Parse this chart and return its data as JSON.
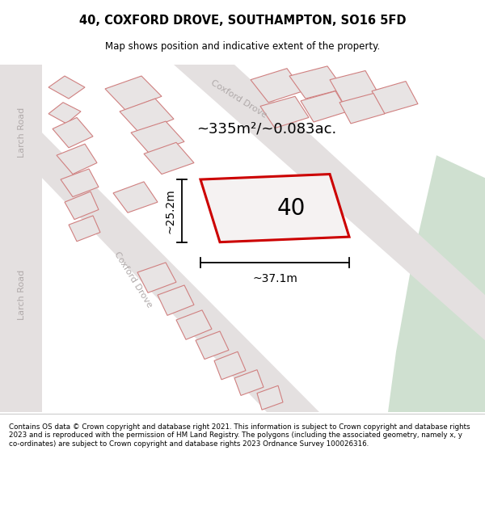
{
  "title": "40, COXFORD DROVE, SOUTHAMPTON, SO16 5FD",
  "subtitle": "Map shows position and indicative extent of the property.",
  "footer": "Contains OS data © Crown copyright and database right 2021. This information is subject to Crown copyright and database rights 2023 and is reproduced with the permission of HM Land Registry. The polygons (including the associated geometry, namely x, y co-ordinates) are subject to Crown copyright and database rights 2023 Ordnance Survey 100026316.",
  "highlight_color": "#cc0000",
  "green_area_color": "#cfe0d0",
  "area_text": "~335m²/~0.083ac.",
  "dim_width": "~37.1m",
  "dim_height": "~25.2m",
  "plot_number": "40",
  "map_bg": "#eeecec",
  "plot_fill": "#f5f2f2",
  "road_fill": "#e4e0e0",
  "building_fill": "#e8e4e4",
  "building_edge": "#d08080",
  "road_label_color": "#b0aaaa"
}
